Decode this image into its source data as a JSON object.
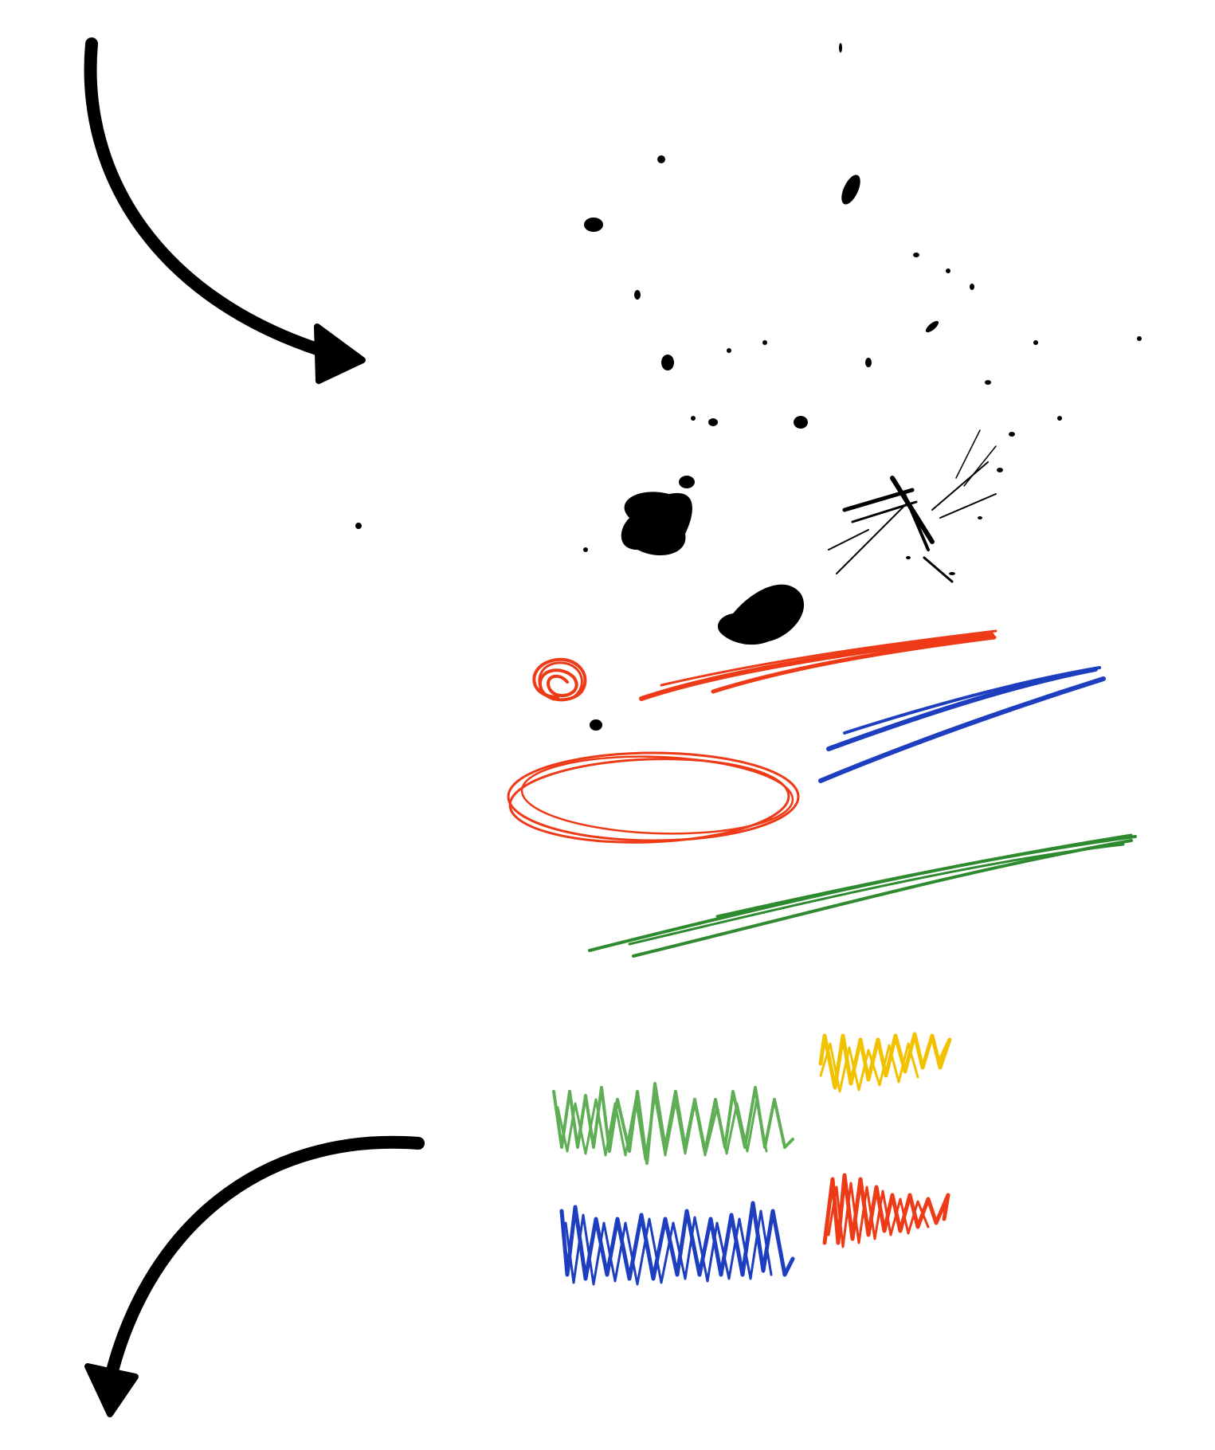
{
  "scene": {
    "description_free": true,
    "background": "#ffffff"
  },
  "colors": {
    "ink": "#000000",
    "red": "#ee3a16",
    "blue": "#1d3fbf",
    "green": "#2e8a2e",
    "light_green": "#5fae55",
    "yellow": "#f2c200"
  },
  "elements": {
    "arrows": [
      {
        "name": "curved-arrow-top",
        "direction": "down-right"
      },
      {
        "name": "curved-arrow-bottom",
        "direction": "down-left"
      }
    ],
    "ink_splatter": {
      "name": "ink-splatter"
    },
    "pencil_strokes": [
      {
        "name": "red-scribble-circle",
        "color": "red"
      },
      {
        "name": "red-stroke",
        "color": "red"
      },
      {
        "name": "blue-stroke",
        "color": "blue"
      },
      {
        "name": "red-oval",
        "color": "red"
      },
      {
        "name": "green-stroke",
        "color": "green"
      },
      {
        "name": "yellow-zigzag",
        "color": "yellow"
      },
      {
        "name": "light-green-zigzag",
        "color": "light_green"
      },
      {
        "name": "red-zigzag",
        "color": "red"
      },
      {
        "name": "blue-zigzag",
        "color": "blue"
      }
    ]
  }
}
